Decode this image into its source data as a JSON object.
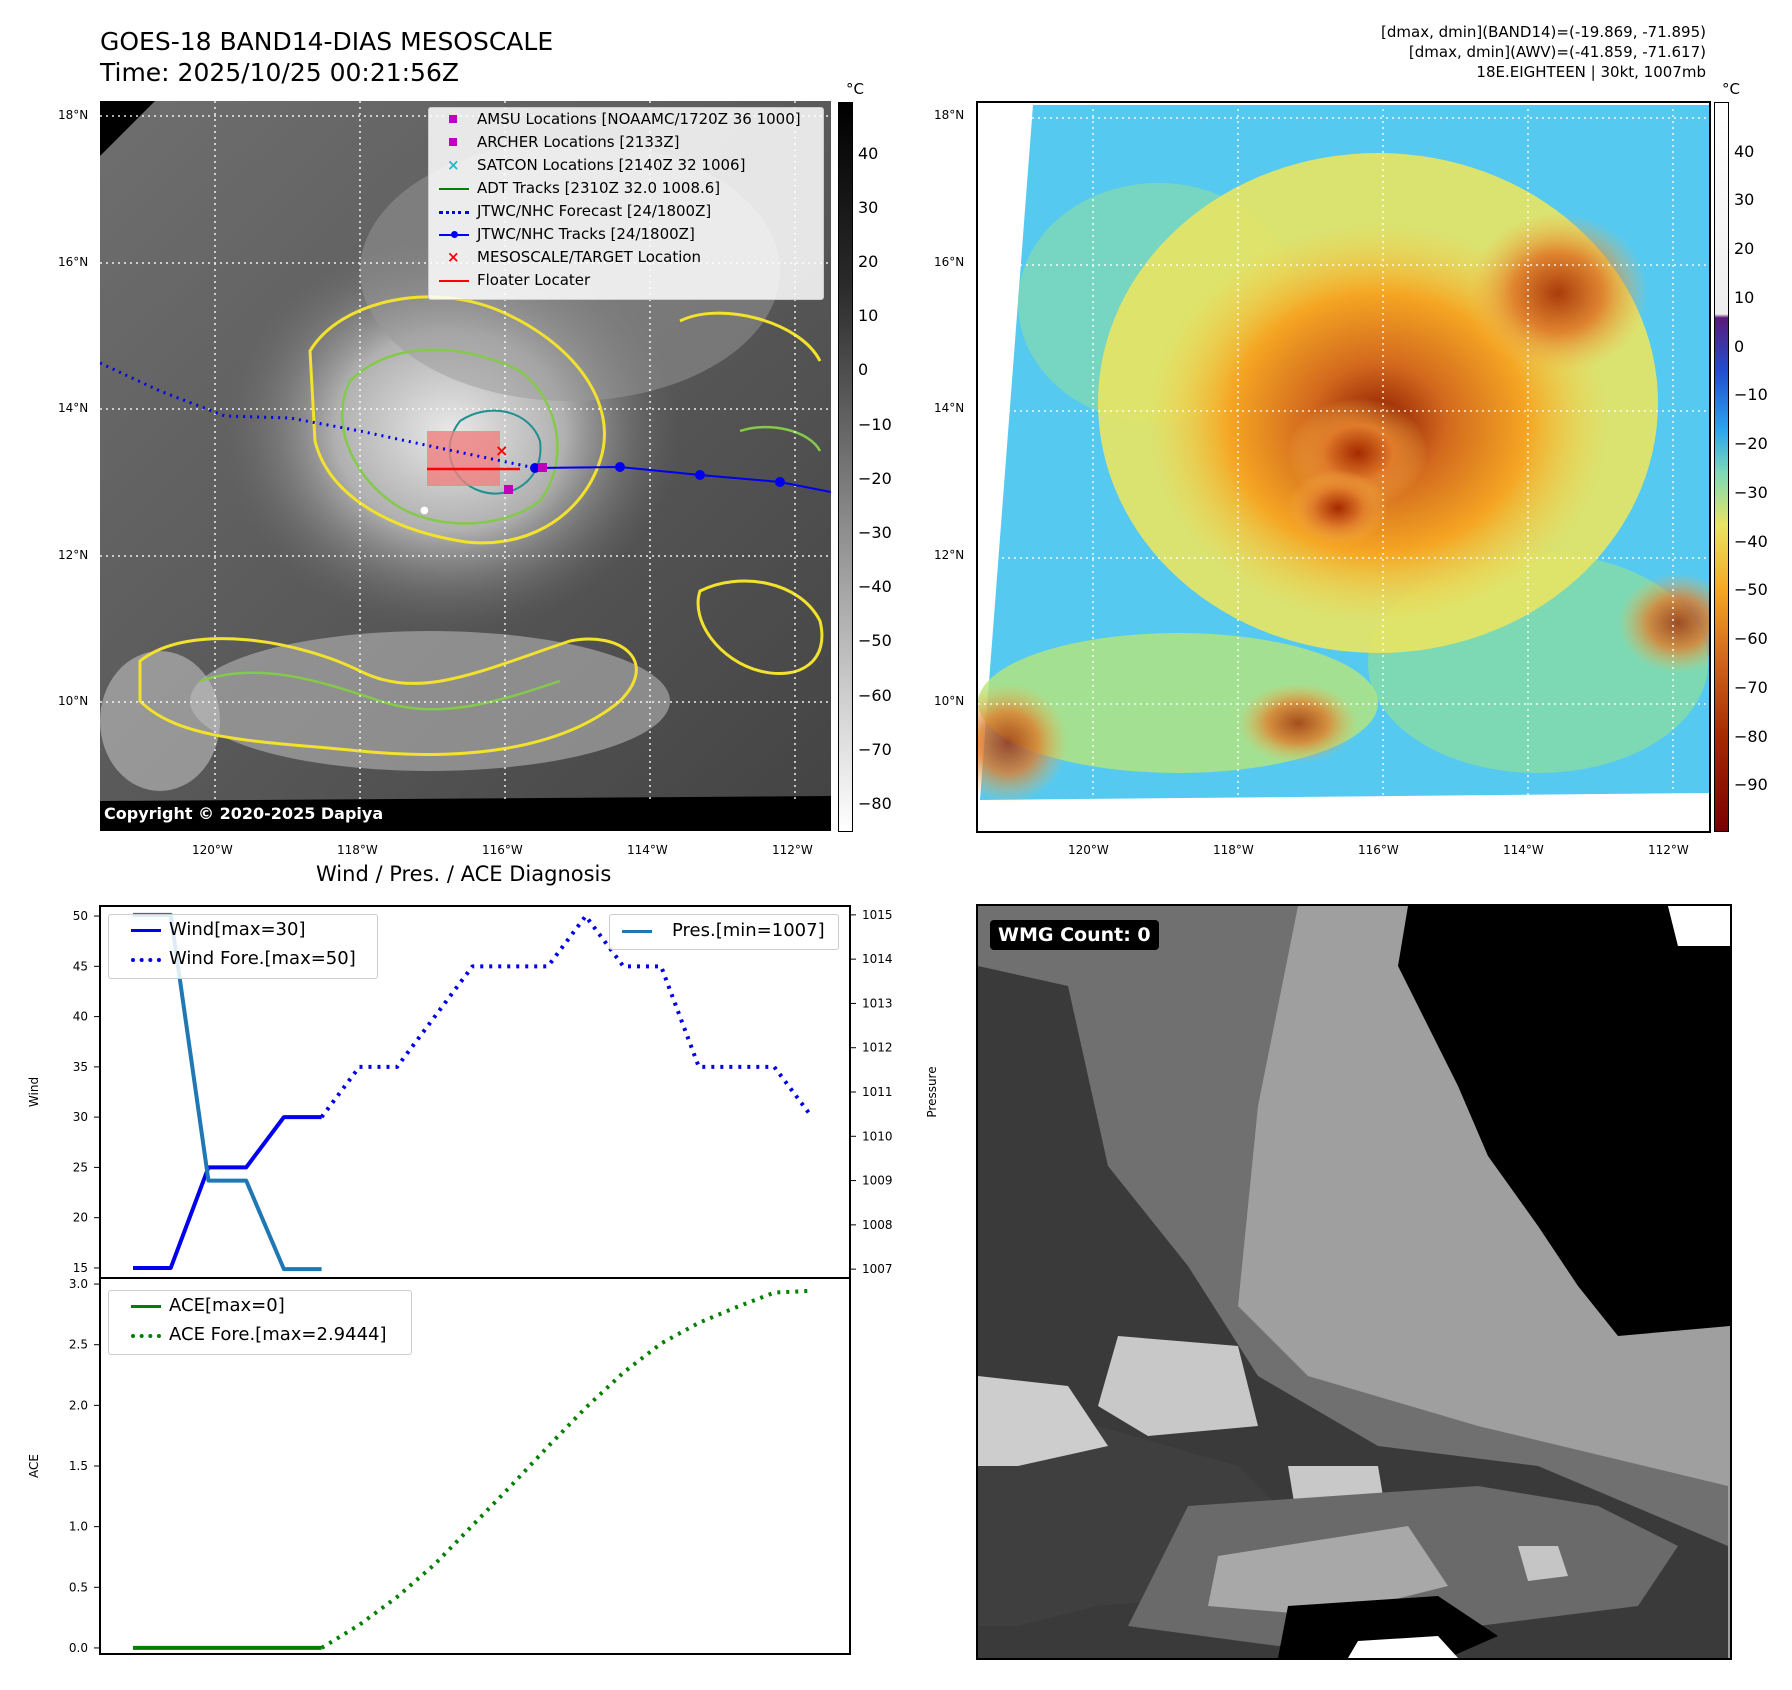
{
  "header": {
    "title_line1": "GOES-18 BAND14-DIAS MESOSCALE",
    "title_line2": "Time: 2025/10/25 00:21:56Z",
    "info_line1": "[dmax, dmin](BAND14)=(-19.869, -71.895)",
    "info_line2": "[dmax, dmin](AWV)=(-41.859, -71.617)",
    "info_line3": "18E.EIGHTEEN | 30kt, 1007mb"
  },
  "ir_panel": {
    "lat_ticks": [
      "18°N",
      "16°N",
      "14°N",
      "12°N",
      "10°N"
    ],
    "lon_ticks": [
      "120°W",
      "118°W",
      "116°W",
      "114°W",
      "112°W"
    ],
    "copyright": "Copyright © 2020-2025 Dapiya",
    "colorbar_unit": "°C",
    "colorbar_ticks": [
      "40",
      "30",
      "20",
      "10",
      "0",
      "−10",
      "−20",
      "−30",
      "−40",
      "−50",
      "−60",
      "−70",
      "−80"
    ],
    "legend": [
      {
        "label": "AMSU Locations [NOAAMC/1720Z 36 1000]",
        "symbol": "square",
        "color": "#bf00bf"
      },
      {
        "label": "ARCHER Locations [2133Z]",
        "symbol": "square",
        "color": "#bf00bf"
      },
      {
        "label": "SATCON Locations [2140Z 32 1006]",
        "symbol": "x",
        "color": "#17becf"
      },
      {
        "label": "ADT Tracks [2310Z 32.0 1008.6]",
        "symbol": "line",
        "color": "#008000"
      },
      {
        "label": "JTWC/NHC Forecast [24/1800Z]",
        "symbol": "dotted",
        "color": "#0000ff"
      },
      {
        "label": "JTWC/NHC Tracks [24/1800Z]",
        "symbol": "line-dot",
        "color": "#0000ff"
      },
      {
        "label": "MESOSCALE/TARGET Location",
        "symbol": "x",
        "color": "#ff0000"
      },
      {
        "label": "Floater Locater",
        "symbol": "line",
        "color": "#ff0000"
      }
    ]
  },
  "wv_panel": {
    "lat_ticks": [
      "18°N",
      "16°N",
      "14°N",
      "12°N",
      "10°N"
    ],
    "lon_ticks": [
      "120°W",
      "118°W",
      "116°W",
      "114°W",
      "112°W"
    ],
    "colorbar_unit": "°C",
    "colorbar_ticks": [
      "40",
      "30",
      "20",
      "10",
      "0",
      "−10",
      "−20",
      "−30",
      "−40",
      "−50",
      "−60",
      "−70",
      "−80",
      "−90"
    ]
  },
  "wmg_panel": {
    "badge": "WMG Count: 0"
  },
  "chart_data": [
    {
      "type": "line",
      "title": "Wind / Pres. / ACE Diagnosis",
      "ylabel": "Wind",
      "ylabel_right": "Pressure",
      "ylim": [
        14,
        51
      ],
      "ylim_right": [
        1006.8,
        1015.2
      ],
      "yticks": [
        "15",
        "20",
        "25",
        "30",
        "35",
        "40",
        "45",
        "50"
      ],
      "yticks_right": [
        "1007",
        "1008",
        "1009",
        "1010",
        "1011",
        "1012",
        "1013",
        "1014",
        "1015"
      ],
      "x_index": [
        0,
        1,
        2,
        3,
        4,
        5,
        6,
        7,
        8,
        9,
        10,
        11,
        12,
        13,
        14,
        15,
        16,
        17,
        18
      ],
      "series": [
        {
          "name": "Wind[max=30]",
          "axis": "left",
          "style": "solid",
          "color": "#0000ee",
          "x": [
            0,
            1,
            2,
            3,
            4,
            5
          ],
          "values": [
            15,
            15,
            25,
            25,
            30,
            30
          ]
        },
        {
          "name": "Wind Fore.[max=50]",
          "axis": "left",
          "style": "dotted",
          "color": "#0000ee",
          "x": [
            5,
            6,
            7,
            8,
            9,
            10,
            11,
            12,
            13,
            14,
            15,
            16,
            17,
            18
          ],
          "values": [
            30,
            35,
            35,
            40,
            45,
            45,
            45,
            50,
            45,
            45,
            35,
            35,
            35,
            30
          ]
        },
        {
          "name": "Pres.[min=1007]",
          "axis": "right",
          "style": "solid",
          "color": "#1f77b4",
          "x": [
            0,
            1,
            2,
            3,
            4,
            5
          ],
          "values": [
            1015,
            1015,
            1009,
            1009,
            1007,
            1007
          ]
        }
      ],
      "legend_left": "upper-left",
      "legend_right": "upper-right"
    },
    {
      "type": "line",
      "ylabel": "ACE",
      "ylim": [
        -0.05,
        3.05
      ],
      "yticks": [
        "0.0",
        "0.5",
        "1.0",
        "1.5",
        "2.0",
        "2.5",
        "3.0"
      ],
      "series": [
        {
          "name": "ACE[max=0]",
          "style": "solid",
          "color": "#008000",
          "x": [
            0,
            1,
            2,
            3,
            4,
            5
          ],
          "values": [
            0,
            0,
            0,
            0,
            0,
            0
          ]
        },
        {
          "name": "ACE Fore.[max=2.9444]",
          "style": "dotted",
          "color": "#008000",
          "x": [
            5,
            6,
            7,
            8,
            9,
            10,
            11,
            12,
            13,
            14,
            15,
            16,
            17,
            18
          ],
          "values": [
            0,
            0.19,
            0.42,
            0.69,
            1.01,
            1.33,
            1.66,
            1.98,
            2.27,
            2.51,
            2.68,
            2.81,
            2.93,
            2.9444
          ]
        }
      ],
      "legend": "upper-left"
    }
  ]
}
